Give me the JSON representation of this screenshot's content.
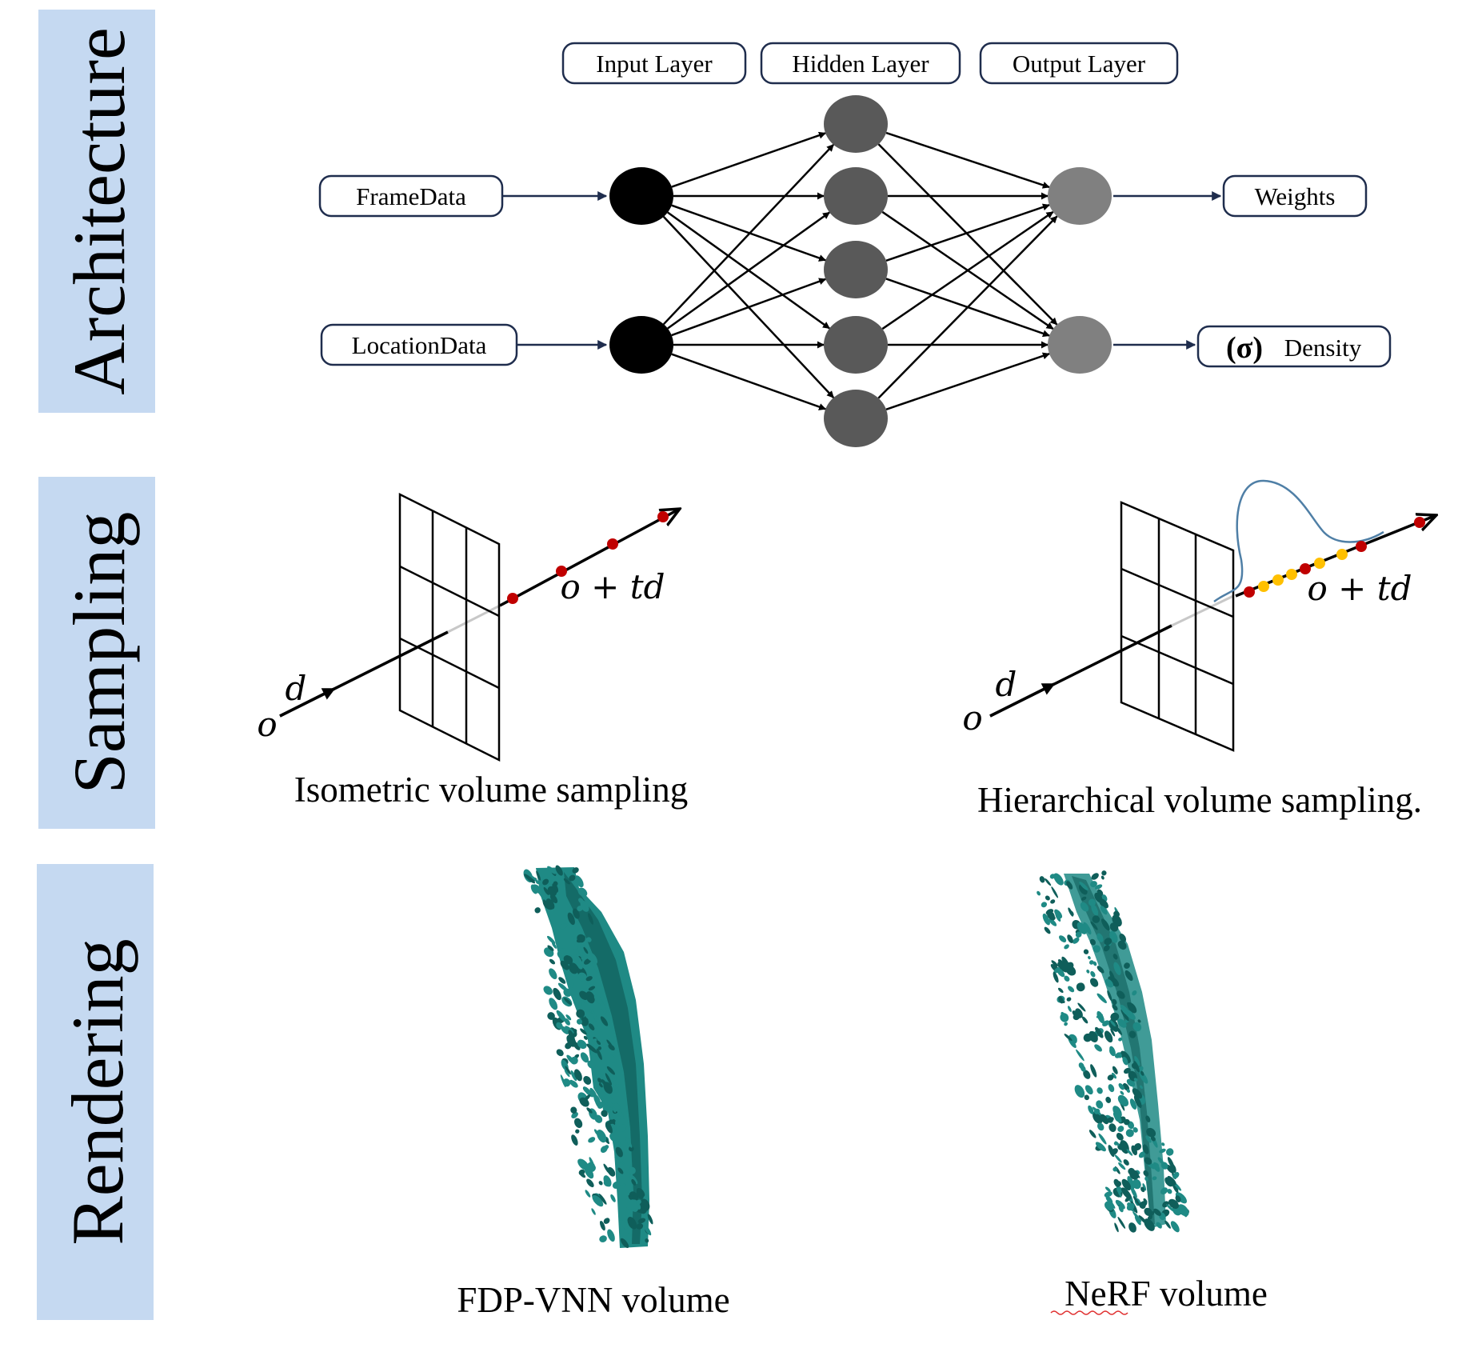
{
  "colors": {
    "label_band": "#c5d9f1",
    "input_node": "#000000",
    "hidden_node": "#595959",
    "output_node": "#808080",
    "sample_red": "#c00000",
    "sample_yellow": "#ffc000",
    "pdf_curve": "#4f7fa6",
    "volume_teal": "#1f8a85",
    "volume_dark": "#0f5e5a"
  },
  "rows": {
    "architecture": "Architecture",
    "sampling": "Sampling",
    "rendering": "Rendering"
  },
  "architecture": {
    "layers": {
      "input": "Input Layer",
      "hidden": "Hidden Layer",
      "output": "Output Layer"
    },
    "inputs": {
      "frame": "FrameData",
      "location": "LocationData"
    },
    "outputs": {
      "weights": "Weights",
      "sigma": "(σ)",
      "density": "Density"
    }
  },
  "sampling": {
    "origin": "o",
    "direction": "d",
    "ray_eq": "o + td",
    "left_caption": "Isometric volume sampling",
    "right_caption": "Hierarchical volume sampling."
  },
  "rendering": {
    "left_caption": "FDP-VNN volume",
    "right_caption": "NeRF volume"
  }
}
